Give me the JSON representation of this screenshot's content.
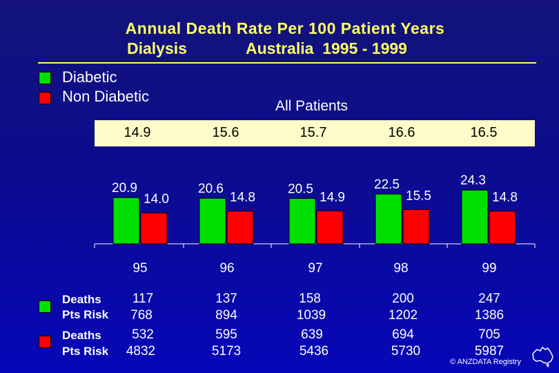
{
  "title": {
    "line1": "Annual Death Rate Per 100 Patient Years",
    "line2_left": "Dialysis",
    "line2_right": "Australia  1995 - 1999"
  },
  "legend": {
    "diabetic": "Diabetic",
    "non_diabetic": "Non Diabetic"
  },
  "subtitle": "All  Patients",
  "colors": {
    "diabetic": "#00e000",
    "non_diabetic": "#ff0000",
    "title": "#ffff66",
    "band": "#fdfcc8"
  },
  "all_patients_rates": [
    "14.9",
    "15.6",
    "15.7",
    "16.6",
    "16.5"
  ],
  "chart_data": {
    "type": "bar",
    "title": "Annual Death Rate Per 100 Patient Years - Dialysis Australia 1995 - 1999",
    "categories": [
      "95",
      "96",
      "97",
      "98",
      "99"
    ],
    "series": [
      {
        "name": "Diabetic",
        "values": [
          20.9,
          20.6,
          20.5,
          22.5,
          24.3
        ]
      },
      {
        "name": "Non Diabetic",
        "values": [
          14.0,
          14.8,
          14.9,
          15.5,
          14.8
        ]
      }
    ],
    "ylim": [
      0,
      30
    ],
    "xlabel": "",
    "ylabel": ""
  },
  "table": {
    "diabetic_row_labels": [
      "Deaths",
      "Pts Risk"
    ],
    "non_diabetic_row_labels": [
      "Deaths",
      "Pts Risk"
    ],
    "diabetic_deaths": [
      "117",
      "137",
      "158",
      "200",
      "247"
    ],
    "diabetic_pts_risk": [
      "768",
      "894",
      "1039",
      "1202",
      "1386"
    ],
    "non_diabetic_deaths": [
      "532",
      "595",
      "639",
      "694",
      "705"
    ],
    "non_diabetic_pts_risk": [
      "4832",
      "5173",
      "5436",
      "5730",
      "5987"
    ]
  },
  "copyright": "© ANZDATA Registry"
}
